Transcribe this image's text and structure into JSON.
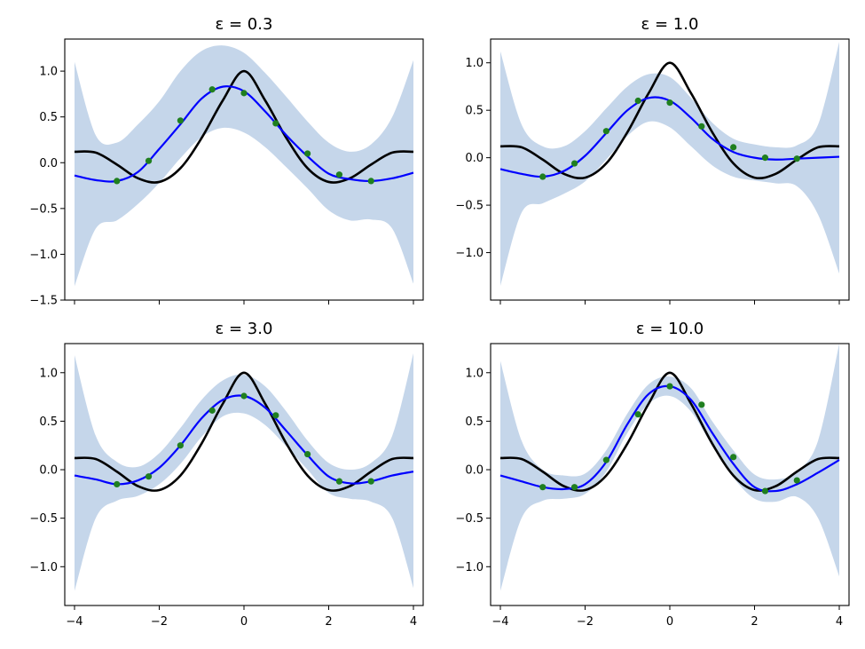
{
  "colors": {
    "band": "#c5d6ea",
    "mean": "#0000ff",
    "truth": "#000000",
    "points": "#1f7f1f"
  },
  "chart_data": [
    {
      "type": "line",
      "title": "ε = 0.3",
      "xlim": [
        -4,
        4
      ],
      "ylim": [
        -1.5,
        1.35
      ],
      "xticks": [
        "",
        "",
        "",
        "",
        ""
      ],
      "yticks": [
        -1.5,
        -1.0,
        -0.5,
        0.0,
        0.5,
        1.0
      ],
      "ytick_labels": [
        "−1.5",
        "−1.0",
        "−0.5",
        "0.0",
        "0.5",
        "1.0"
      ],
      "series": [
        {
          "kind": "band",
          "x": [
            -4,
            -3.5,
            -3,
            -2.5,
            -2,
            -1.5,
            -1,
            -0.5,
            0,
            0.5,
            1,
            1.5,
            2,
            2.5,
            3,
            3.5,
            4
          ],
          "upper": [
            1.1,
            0.3,
            0.22,
            0.42,
            0.67,
            1.0,
            1.22,
            1.28,
            1.2,
            0.98,
            0.72,
            0.45,
            0.22,
            0.12,
            0.2,
            0.5,
            1.12
          ],
          "lower": [
            -1.35,
            -0.72,
            -0.63,
            -0.45,
            -0.22,
            0.05,
            0.28,
            0.38,
            0.33,
            0.17,
            -0.05,
            -0.28,
            -0.52,
            -0.63,
            -0.62,
            -0.72,
            -1.32
          ]
        },
        {
          "kind": "mean",
          "x": [
            -4,
            -3.5,
            -3,
            -2.5,
            -2,
            -1.5,
            -1,
            -0.5,
            0,
            0.5,
            1,
            1.5,
            2,
            2.5,
            3,
            3.5,
            4
          ],
          "y": [
            -0.14,
            -0.19,
            -0.2,
            -0.1,
            0.15,
            0.42,
            0.7,
            0.83,
            0.78,
            0.56,
            0.3,
            0.07,
            -0.12,
            -0.18,
            -0.2,
            -0.17,
            -0.11
          ]
        },
        {
          "kind": "truth",
          "x": [
            -4,
            -3.5,
            -3,
            -2.5,
            -2,
            -1.5,
            -1,
            -0.5,
            0,
            0.5,
            1,
            1.5,
            2,
            2.5,
            3,
            3.5,
            4
          ],
          "y": [
            0.12,
            0.11,
            -0.02,
            -0.17,
            -0.21,
            -0.06,
            0.27,
            0.68,
            1.0,
            0.68,
            0.27,
            -0.06,
            -0.21,
            -0.17,
            -0.02,
            0.11,
            0.12
          ]
        },
        {
          "kind": "points",
          "x": [
            -3.0,
            -2.25,
            -1.5,
            -0.75,
            0.0,
            0.75,
            1.5,
            2.25,
            3.0
          ],
          "y": [
            -0.2,
            0.02,
            0.46,
            0.8,
            0.76,
            0.43,
            0.1,
            -0.13,
            -0.2
          ]
        }
      ]
    },
    {
      "type": "line",
      "title": "ε = 1.0",
      "xlim": [
        -4,
        4
      ],
      "ylim": [
        -1.5,
        1.25
      ],
      "xticks": [
        "",
        "",
        "",
        "",
        ""
      ],
      "yticks": [
        -1.0,
        -0.5,
        0.0,
        0.5,
        1.0
      ],
      "ytick_labels": [
        "−1.0",
        "−0.5",
        "0.0",
        "0.5",
        "1.0"
      ],
      "series": [
        {
          "kind": "band",
          "x": [
            -4,
            -3.5,
            -3,
            -2.5,
            -2,
            -1.5,
            -1,
            -0.5,
            0,
            0.5,
            1,
            1.5,
            2,
            2.5,
            3,
            3.5,
            4
          ],
          "upper": [
            1.12,
            0.35,
            0.12,
            0.12,
            0.28,
            0.52,
            0.75,
            0.88,
            0.85,
            0.63,
            0.37,
            0.2,
            0.14,
            0.11,
            0.13,
            0.35,
            1.22
          ],
          "lower": [
            -1.35,
            -0.58,
            -0.48,
            -0.38,
            -0.25,
            -0.02,
            0.23,
            0.38,
            0.32,
            0.12,
            -0.08,
            -0.2,
            -0.24,
            -0.27,
            -0.3,
            -0.6,
            -1.22
          ]
        },
        {
          "kind": "mean",
          "x": [
            -4,
            -3.5,
            -3,
            -2.5,
            -2,
            -1.5,
            -1,
            -0.5,
            0,
            0.5,
            1,
            1.5,
            2,
            2.5,
            3,
            3.5,
            4
          ],
          "y": [
            -0.12,
            -0.17,
            -0.2,
            -0.14,
            0.02,
            0.26,
            0.5,
            0.63,
            0.6,
            0.42,
            0.2,
            0.06,
            0.0,
            -0.02,
            -0.01,
            0.0,
            0.01
          ]
        },
        {
          "kind": "truth",
          "x": [
            -4,
            -3.5,
            -3,
            -2.5,
            -2,
            -1.5,
            -1,
            -0.5,
            0,
            0.5,
            1,
            1.5,
            2,
            2.5,
            3,
            3.5,
            4
          ],
          "y": [
            0.12,
            0.11,
            -0.02,
            -0.17,
            -0.21,
            -0.06,
            0.27,
            0.68,
            1.0,
            0.68,
            0.27,
            -0.06,
            -0.21,
            -0.17,
            -0.02,
            0.11,
            0.12
          ]
        },
        {
          "kind": "points",
          "x": [
            -3.0,
            -2.25,
            -1.5,
            -0.75,
            0.0,
            0.75,
            1.5,
            2.25,
            3.0
          ],
          "y": [
            -0.2,
            -0.06,
            0.28,
            0.6,
            0.58,
            0.33,
            0.11,
            0.0,
            -0.01
          ]
        }
      ]
    },
    {
      "type": "line",
      "title": "ε = 3.0",
      "xlim": [
        -4,
        4
      ],
      "ylim": [
        -1.4,
        1.3
      ],
      "xticks": [
        -4,
        -2,
        0,
        2,
        4
      ],
      "xtick_labels": [
        "−4",
        "−2",
        "0",
        "2",
        "4"
      ],
      "yticks": [
        -1.0,
        -0.5,
        0.0,
        0.5,
        1.0
      ],
      "ytick_labels": [
        "−1.0",
        "−0.5",
        "0.0",
        "0.5",
        "1.0"
      ],
      "series": [
        {
          "kind": "band",
          "x": [
            -4,
            -3.5,
            -3,
            -2.5,
            -2,
            -1.5,
            -1,
            -0.5,
            0,
            0.5,
            1,
            1.5,
            2,
            2.5,
            3,
            3.5,
            4
          ],
          "upper": [
            1.18,
            0.35,
            0.08,
            0.03,
            0.17,
            0.43,
            0.72,
            0.92,
            0.98,
            0.86,
            0.6,
            0.3,
            0.07,
            0.0,
            0.07,
            0.35,
            1.2
          ],
          "lower": [
            -1.25,
            -0.5,
            -0.32,
            -0.27,
            -0.15,
            0.06,
            0.34,
            0.55,
            0.58,
            0.46,
            0.24,
            0.0,
            -0.24,
            -0.3,
            -0.33,
            -0.5,
            -1.22
          ]
        },
        {
          "kind": "mean",
          "x": [
            -4,
            -3.5,
            -3,
            -2.5,
            -2,
            -1.5,
            -1,
            -0.5,
            0,
            0.5,
            1,
            1.5,
            2,
            2.5,
            3,
            3.5,
            4
          ],
          "y": [
            -0.06,
            -0.1,
            -0.15,
            -0.11,
            0.02,
            0.25,
            0.53,
            0.72,
            0.76,
            0.64,
            0.4,
            0.15,
            -0.07,
            -0.14,
            -0.12,
            -0.06,
            -0.02
          ]
        },
        {
          "kind": "truth",
          "x": [
            -4,
            -3.5,
            -3,
            -2.5,
            -2,
            -1.5,
            -1,
            -0.5,
            0,
            0.5,
            1,
            1.5,
            2,
            2.5,
            3,
            3.5,
            4
          ],
          "y": [
            0.12,
            0.11,
            -0.02,
            -0.17,
            -0.21,
            -0.06,
            0.27,
            0.68,
            1.0,
            0.68,
            0.27,
            -0.06,
            -0.21,
            -0.17,
            -0.02,
            0.11,
            0.12
          ]
        },
        {
          "kind": "points",
          "x": [
            -3.0,
            -2.25,
            -1.5,
            -0.75,
            0.0,
            0.75,
            1.5,
            2.25,
            3.0
          ],
          "y": [
            -0.15,
            -0.07,
            0.25,
            0.61,
            0.76,
            0.56,
            0.16,
            -0.12,
            -0.12
          ]
        }
      ]
    },
    {
      "type": "line",
      "title": "ε = 10.0",
      "xlim": [
        -4,
        4
      ],
      "ylim": [
        -1.4,
        1.3
      ],
      "xticks": [
        -4,
        -2,
        0,
        2,
        4
      ],
      "xtick_labels": [
        "−4",
        "−2",
        "0",
        "2",
        "4"
      ],
      "yticks": [
        -1.0,
        -0.5,
        0.0,
        0.5,
        1.0
      ],
      "ytick_labels": [
        "−1.0",
        "−0.5",
        "0.0",
        "0.5",
        "1.0"
      ],
      "series": [
        {
          "kind": "band",
          "x": [
            -4,
            -3.5,
            -3,
            -2.5,
            -2,
            -1.5,
            -1,
            -0.5,
            0,
            0.5,
            1,
            1.5,
            2,
            2.5,
            3,
            3.5,
            4
          ],
          "upper": [
            1.12,
            0.3,
            0.0,
            -0.06,
            -0.04,
            0.2,
            0.58,
            0.88,
            0.96,
            0.84,
            0.5,
            0.2,
            -0.05,
            -0.1,
            -0.02,
            0.3,
            1.3
          ],
          "lower": [
            -1.25,
            -0.5,
            -0.32,
            -0.3,
            -0.25,
            -0.02,
            0.38,
            0.68,
            0.76,
            0.6,
            0.25,
            -0.08,
            -0.3,
            -0.33,
            -0.28,
            -0.5,
            -1.1
          ]
        },
        {
          "kind": "mean",
          "x": [
            -4,
            -3.5,
            -3,
            -2.5,
            -2,
            -1.5,
            -1,
            -0.5,
            0,
            0.5,
            1,
            1.5,
            2,
            2.5,
            3,
            3.5,
            4
          ],
          "y": [
            -0.06,
            -0.12,
            -0.18,
            -0.2,
            -0.15,
            0.08,
            0.47,
            0.78,
            0.86,
            0.72,
            0.38,
            0.06,
            -0.18,
            -0.22,
            -0.15,
            -0.03,
            0.1
          ]
        },
        {
          "kind": "truth",
          "x": [
            -4,
            -3.5,
            -3,
            -2.5,
            -2,
            -1.5,
            -1,
            -0.5,
            0,
            0.5,
            1,
            1.5,
            2,
            2.5,
            3,
            3.5,
            4
          ],
          "y": [
            0.12,
            0.11,
            -0.02,
            -0.17,
            -0.21,
            -0.06,
            0.27,
            0.68,
            1.0,
            0.68,
            0.27,
            -0.06,
            -0.21,
            -0.17,
            -0.02,
            0.11,
            0.12
          ]
        },
        {
          "kind": "points",
          "x": [
            -3.0,
            -2.25,
            -1.5,
            -0.75,
            0.0,
            0.75,
            1.5,
            2.25,
            3.0
          ],
          "y": [
            -0.18,
            -0.18,
            0.1,
            0.57,
            0.86,
            0.67,
            0.13,
            -0.22,
            -0.11
          ]
        }
      ]
    }
  ]
}
